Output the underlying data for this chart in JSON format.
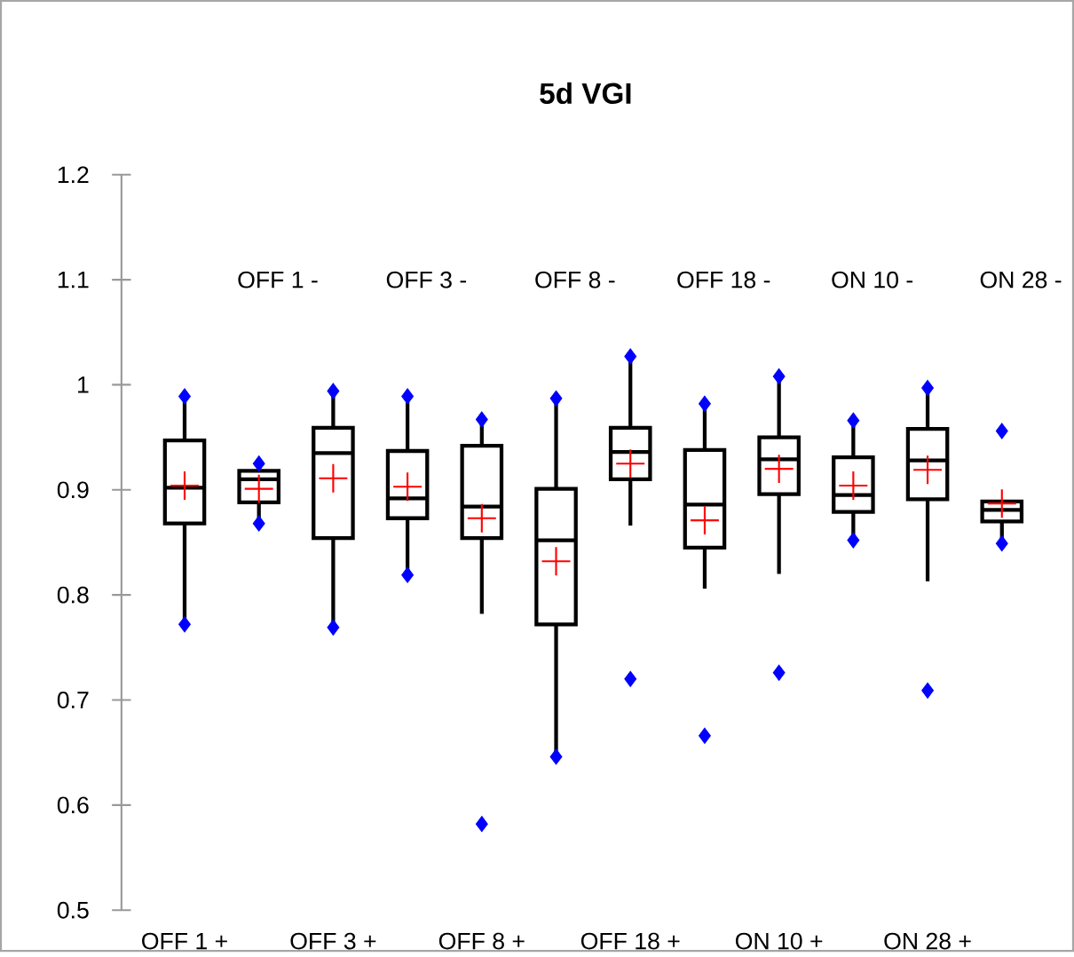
{
  "chart_data": {
    "type": "box",
    "title": "5d VGI",
    "categories": [
      "OFF 1 +",
      "OFF 1 -",
      "OFF 3 +",
      "OFF 3 -",
      "OFF 8 +",
      "OFF 8 -",
      "OFF 18 +",
      "OFF 18 -",
      "ON 10 +",
      "ON 10 -",
      "ON 28 +",
      "ON 28 -"
    ],
    "ylim": [
      0.5,
      1.2
    ],
    "yticks": [
      0.5,
      0.6,
      0.7,
      0.8,
      0.9,
      1,
      1.1,
      1.2
    ],
    "boxes": [
      {
        "low": 0.772,
        "q1": 0.868,
        "median": 0.902,
        "q3": 0.947,
        "high": 0.989,
        "mean": 0.904,
        "outliers": [
          0.772,
          0.989
        ]
      },
      {
        "low": 0.868,
        "q1": 0.888,
        "median": 0.91,
        "q3": 0.918,
        "high": 0.925,
        "mean": 0.901,
        "outliers": [
          0.868,
          0.925
        ]
      },
      {
        "low": 0.769,
        "q1": 0.854,
        "median": 0.935,
        "q3": 0.959,
        "high": 0.994,
        "mean": 0.911,
        "outliers": [
          0.769,
          0.994
        ]
      },
      {
        "low": 0.819,
        "q1": 0.873,
        "median": 0.892,
        "q3": 0.937,
        "high": 0.989,
        "mean": 0.903,
        "outliers": [
          0.819,
          0.989
        ]
      },
      {
        "low": 0.782,
        "q1": 0.854,
        "median": 0.884,
        "q3": 0.942,
        "high": 0.967,
        "mean": 0.873,
        "outliers": [
          0.582,
          0.967
        ]
      },
      {
        "low": 0.646,
        "q1": 0.772,
        "median": 0.852,
        "q3": 0.901,
        "high": 0.987,
        "mean": 0.832,
        "outliers": [
          0.646,
          0.987
        ]
      },
      {
        "low": 0.866,
        "q1": 0.91,
        "median": 0.936,
        "q3": 0.959,
        "high": 1.027,
        "mean": 0.925,
        "outliers": [
          0.72,
          1.027
        ]
      },
      {
        "low": 0.806,
        "q1": 0.845,
        "median": 0.886,
        "q3": 0.938,
        "high": 0.982,
        "mean": 0.871,
        "outliers": [
          0.666,
          0.982
        ]
      },
      {
        "low": 0.82,
        "q1": 0.896,
        "median": 0.929,
        "q3": 0.95,
        "high": 1.008,
        "mean": 0.92,
        "outliers": [
          0.726,
          1.008
        ]
      },
      {
        "low": 0.852,
        "q1": 0.879,
        "median": 0.895,
        "q3": 0.931,
        "high": 0.966,
        "mean": 0.904,
        "outliers": [
          0.852,
          0.966
        ]
      },
      {
        "low": 0.813,
        "q1": 0.891,
        "median": 0.928,
        "q3": 0.958,
        "high": 0.997,
        "mean": 0.919,
        "outliers": [
          0.709,
          0.997
        ]
      },
      {
        "low": 0.849,
        "q1": 0.87,
        "median": 0.881,
        "q3": 0.889,
        "high": 0.889,
        "mean": 0.887,
        "outliers": [
          0.849,
          0.956
        ]
      }
    ]
  }
}
